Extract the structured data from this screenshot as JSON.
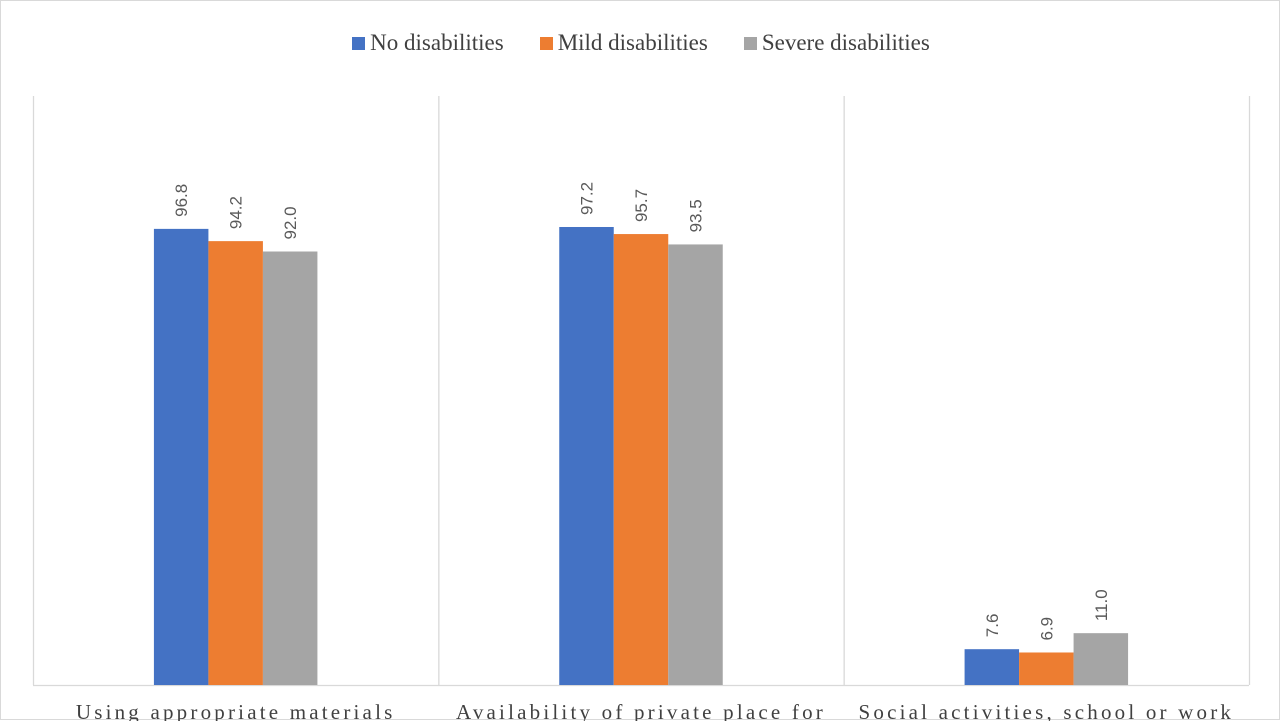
{
  "chart_data": {
    "type": "bar",
    "categories": [
      "Using appropriate materials",
      "Availability of private place for",
      "Social activities, school or work"
    ],
    "series": [
      {
        "name": "No disabilities",
        "color": "#4472c4",
        "values": [
          96.8,
          97.2,
          7.6
        ]
      },
      {
        "name": "Mild disabilities",
        "color": "#ed7d31",
        "values": [
          94.2,
          95.7,
          6.9
        ]
      },
      {
        "name": "Severe disabilities",
        "color": "#a5a5a5",
        "values": [
          92.0,
          93.5,
          11.0
        ]
      }
    ],
    "value_labels": [
      [
        "96.8",
        "97.2",
        "7.6"
      ],
      [
        "94.2",
        "95.7",
        "6.9"
      ],
      [
        "92.0",
        "93.5",
        "11.0"
      ]
    ],
    "ylim": [
      0,
      125
    ],
    "legend_position": "top-center",
    "grid": "vertical category separators"
  }
}
